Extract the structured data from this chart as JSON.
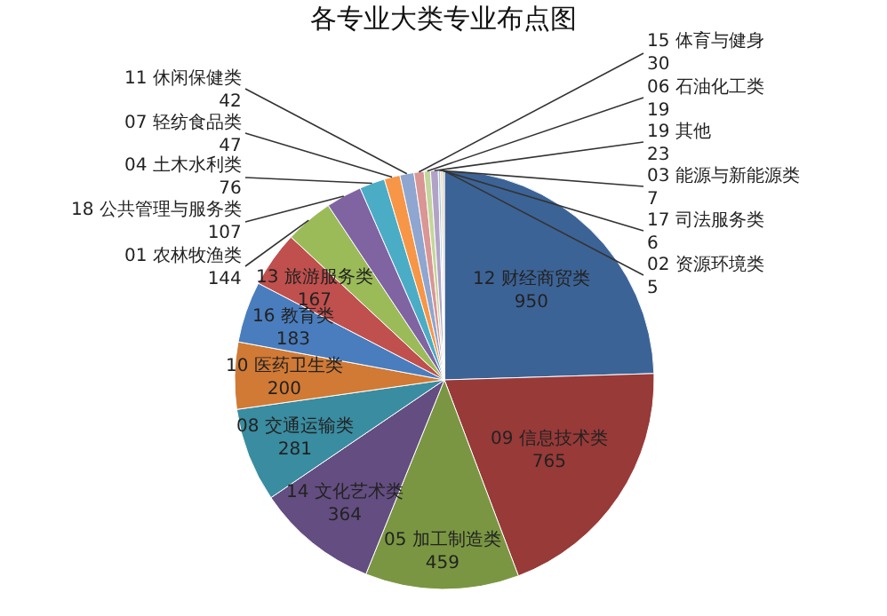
{
  "chart_data": {
    "type": "pie",
    "title": "各专业大类专业布点图",
    "categories": [
      "12 财经商贸类",
      "09 信息技术类",
      "05 加工制造类",
      "14 文化艺术类",
      "08 交通运输类",
      "10 医药卫生类",
      "16 教育类",
      "13 旅游服务类",
      "01 农林牧渔类",
      "18 公共管理与服务类",
      "04 土木水利类",
      "07 轻纺食品类",
      "11 休闲保健类",
      "15 体育与健身",
      "06 石油化工类",
      "19 其他",
      "03 能源与新能源类",
      "17 司法服务类",
      "02 资源环境类"
    ],
    "values": [
      950,
      765,
      459,
      364,
      281,
      200,
      183,
      167,
      144,
      107,
      76,
      47,
      42,
      30,
      19,
      23,
      7,
      6,
      5
    ],
    "colors": [
      "#3c6396",
      "#983a38",
      "#7a9642",
      "#644d80",
      "#3a8ca0",
      "#d07a36",
      "#4a7dbd",
      "#c0504d",
      "#9bbb59",
      "#8064a2",
      "#4bacc6",
      "#f79646",
      "#8ea6d0",
      "#d99694",
      "#c3d69b",
      "#b3a2c7",
      "#93cddd",
      "#fac090",
      "#a5a5a5"
    ],
    "data_labels": true,
    "legend": false
  }
}
